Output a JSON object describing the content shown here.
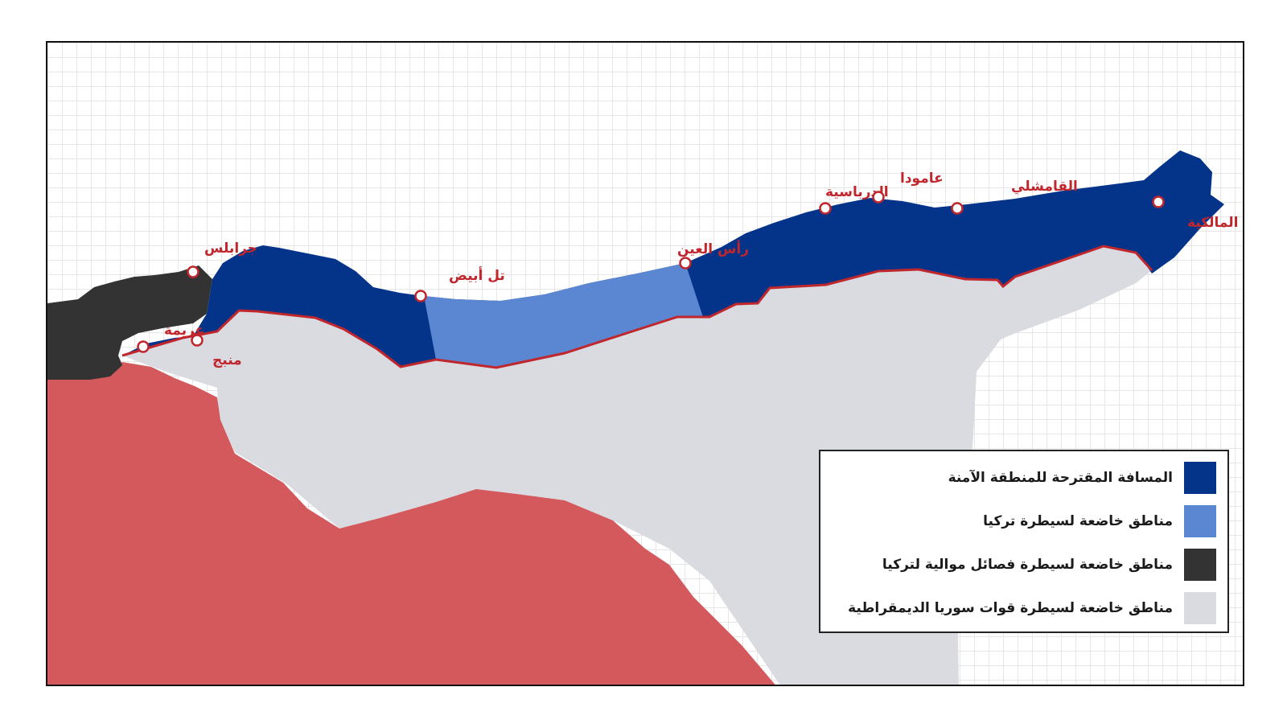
{
  "map": {
    "colors": {
      "safe_zone": "#04338a",
      "turkey_control": "#5b86d1",
      "pro_turkey_factions": "#333333",
      "sdf_control": "#d9dbe1",
      "other_territory": "#d3595c",
      "border_line": "#c0272d",
      "label": "#c0272d"
    },
    "cities": [
      {
        "id": "jarablus",
        "name": "جرابلس"
      },
      {
        "id": "manbij",
        "name": "منبج"
      },
      {
        "id": "arima",
        "name": "عريمة"
      },
      {
        "id": "tal-abyad",
        "name": "تل أبيض"
      },
      {
        "id": "ras-al-ain",
        "name": "رأس العين"
      },
      {
        "id": "darbasiyah",
        "name": "الدرباسية"
      },
      {
        "id": "amuda",
        "name": "عامودا"
      },
      {
        "id": "qamishli",
        "name": "القامشلي"
      },
      {
        "id": "malikiyah",
        "name": "المالكية"
      }
    ]
  },
  "legend": {
    "items": [
      {
        "label": "المسافة المقترحة للمنطقة الآمنة",
        "color": "#04338a",
        "icon": "swatch-safe-zone"
      },
      {
        "label": "مناطق خاضعة لسيطرة تركيا",
        "color": "#5b86d1",
        "icon": "swatch-turkey"
      },
      {
        "label": "مناطق خاضعة لسيطرة فصائل موالية لتركيا",
        "color": "#333333",
        "icon": "swatch-pro-turkey"
      },
      {
        "label": "مناطق خاضعة لسيطرة قوات سوريا الديمقراطية",
        "color": "#d9dbe1",
        "icon": "swatch-sdf"
      }
    ]
  }
}
